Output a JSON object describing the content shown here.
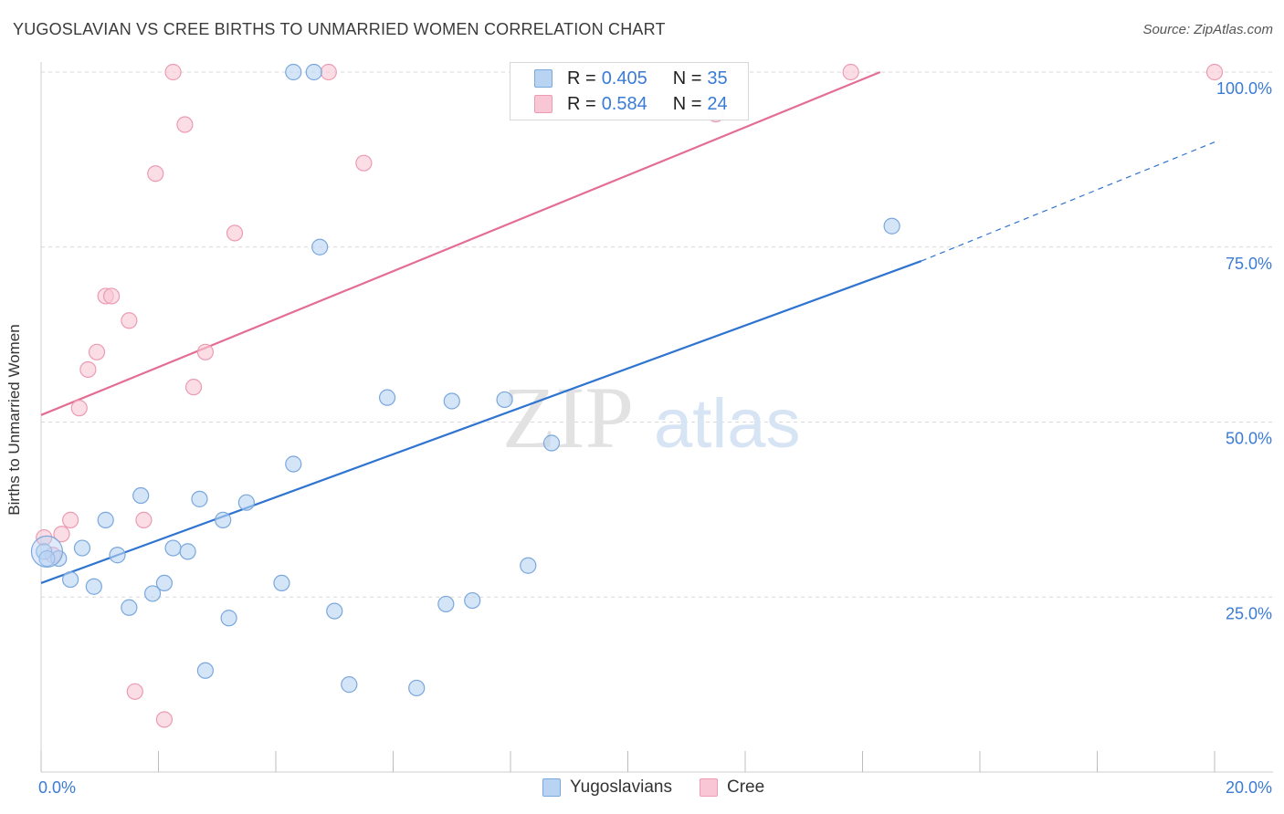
{
  "title": "YUGOSLAVIAN VS CREE BIRTHS TO UNMARRIED WOMEN CORRELATION CHART",
  "source": "Source: ZipAtlas.com",
  "watermark": {
    "zip": "ZIP",
    "atlas": "atlas"
  },
  "colors": {
    "blue_fill": "#b9d3f3",
    "blue_stroke": "#7aa7dc",
    "blue_line": "#2f74d0",
    "pink_fill": "#f8c6d4",
    "pink_stroke": "#ec9bb3",
    "pink_line": "#e46e93",
    "tick_text": "#3a7bd5",
    "grid": "#d9d9d9"
  },
  "legend": {
    "rows": [
      {
        "series": "Yugoslavians",
        "r_label": "R = ",
        "r_value": "0.405",
        "n_label": "N = ",
        "n_value": "35"
      },
      {
        "series": "Cree",
        "r_label": "R = ",
        "r_value": "0.584",
        "n_label": "N = ",
        "n_value": "24"
      }
    ]
  },
  "bottom_legend": {
    "items": [
      "Yugoslavians",
      "Cree"
    ]
  },
  "chart_data": {
    "type": "scatter",
    "title": "YUGOSLAVIAN VS CREE BIRTHS TO UNMARRIED WOMEN CORRELATION CHART",
    "xlabel": "",
    "ylabel": "Births to Unmarried Women",
    "xlim": [
      0,
      20
    ],
    "ylim": [
      0,
      100
    ],
    "x_tick_labels": [
      {
        "value": 0,
        "label": "0.0%"
      },
      {
        "value": 20,
        "label": "20.0%"
      }
    ],
    "y_tick_labels": [
      {
        "value": 25,
        "label": "25.0%"
      },
      {
        "value": 50,
        "label": "50.0%"
      },
      {
        "value": 75,
        "label": "75.0%"
      },
      {
        "value": 100,
        "label": "100.0%"
      }
    ],
    "grid": true,
    "series": [
      {
        "name": "Yugoslavians",
        "r": 0.405,
        "n": 35,
        "points": [
          [
            0.05,
            31.5
          ],
          [
            0.3,
            30.5
          ],
          [
            0.5,
            27.5
          ],
          [
            0.7,
            32.0
          ],
          [
            0.9,
            26.5
          ],
          [
            1.1,
            36.0
          ],
          [
            1.3,
            31.0
          ],
          [
            1.5,
            23.5
          ],
          [
            1.7,
            39.5
          ],
          [
            1.9,
            25.5
          ],
          [
            2.1,
            27.0
          ],
          [
            2.25,
            32.0
          ],
          [
            2.5,
            31.5
          ],
          [
            2.7,
            39.0
          ],
          [
            2.8,
            14.5
          ],
          [
            3.1,
            36.0
          ],
          [
            3.2,
            22.0
          ],
          [
            3.5,
            38.5
          ],
          [
            4.3,
            44.0
          ],
          [
            4.1,
            27.0
          ],
          [
            4.3,
            100.0
          ],
          [
            4.65,
            100.0
          ],
          [
            4.75,
            75.0
          ],
          [
            5.0,
            23.0
          ],
          [
            5.25,
            12.5
          ],
          [
            5.9,
            53.5
          ],
          [
            6.4,
            12.0
          ],
          [
            6.9,
            24.0
          ],
          [
            7.0,
            53.0
          ],
          [
            7.35,
            24.5
          ],
          [
            7.9,
            53.2
          ],
          [
            8.3,
            29.5
          ],
          [
            8.7,
            47.0
          ],
          [
            14.5,
            78.0
          ],
          [
            0.1,
            30.5
          ]
        ],
        "trend": {
          "x0": 0,
          "y0": 27.0,
          "x1": 15.0,
          "y1": 73.0,
          "dashed_to": [
            20,
            90.0
          ]
        }
      },
      {
        "name": "Cree",
        "r": 0.584,
        "n": 24,
        "points": [
          [
            0.05,
            33.5
          ],
          [
            0.2,
            31.0
          ],
          [
            0.35,
            34.0
          ],
          [
            0.5,
            36.0
          ],
          [
            0.65,
            52.0
          ],
          [
            0.8,
            57.5
          ],
          [
            0.95,
            60.0
          ],
          [
            1.1,
            68.0
          ],
          [
            1.2,
            68.0
          ],
          [
            1.5,
            64.5
          ],
          [
            1.6,
            11.5
          ],
          [
            1.75,
            36.0
          ],
          [
            1.95,
            85.5
          ],
          [
            2.1,
            7.5
          ],
          [
            2.25,
            100.0
          ],
          [
            2.45,
            92.5
          ],
          [
            2.6,
            55.0
          ],
          [
            2.8,
            60.0
          ],
          [
            3.3,
            77.0
          ],
          [
            4.9,
            100.0
          ],
          [
            5.5,
            87.0
          ],
          [
            11.5,
            94.0
          ],
          [
            13.8,
            100.0
          ],
          [
            20.0,
            100.0
          ]
        ],
        "trend": {
          "x0": 0,
          "y0": 51.0,
          "x1": 14.3,
          "y1": 100.0
        }
      }
    ]
  }
}
